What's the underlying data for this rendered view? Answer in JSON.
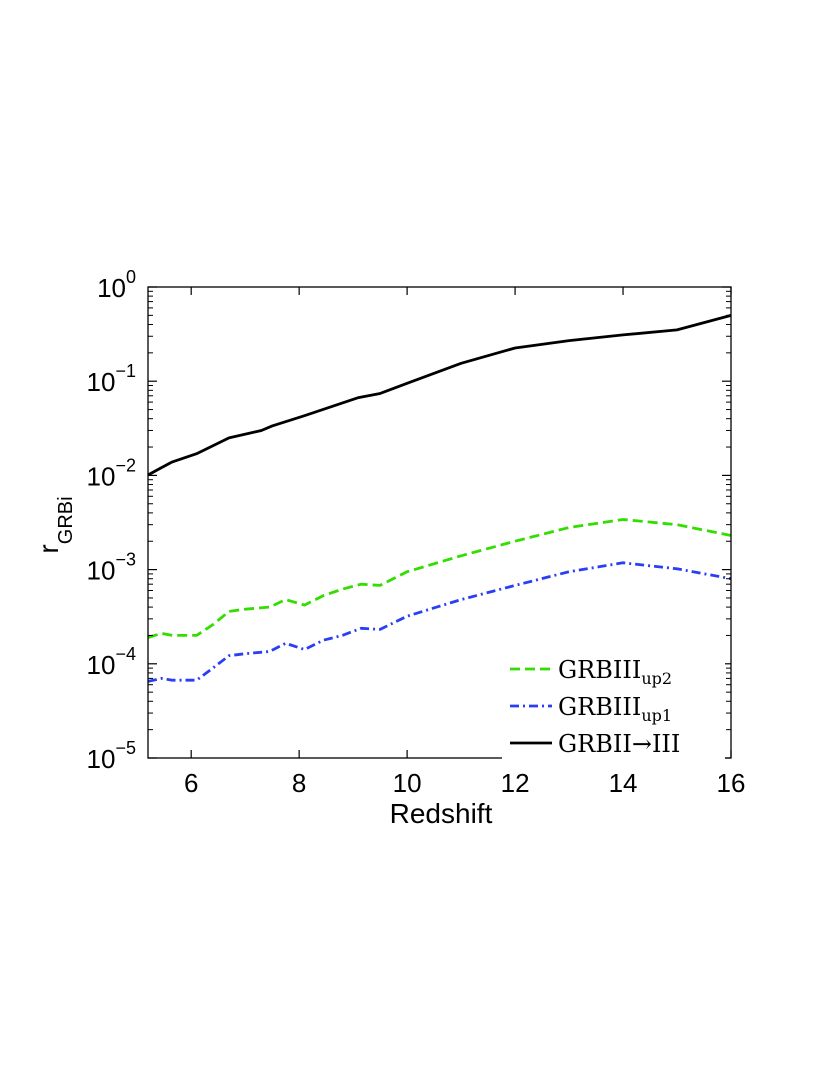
{
  "chart_data": {
    "type": "line",
    "xlabel": "Redshift",
    "ylabel": "r",
    "ylabel_sub": "GRBi",
    "xlim": [
      5.2,
      16
    ],
    "ylim": [
      1e-05,
      1
    ],
    "y_scale": "log",
    "grid": false,
    "legend_position": "bottom-right",
    "x_ticks": [
      6,
      8,
      10,
      12,
      14,
      16
    ],
    "y_ticks": [
      {
        "value": 1e-05,
        "base": "10",
        "exp": "−5"
      },
      {
        "value": 0.0001,
        "base": "10",
        "exp": "−4"
      },
      {
        "value": 0.001,
        "base": "10",
        "exp": "−3"
      },
      {
        "value": 0.01,
        "base": "10",
        "exp": "−2"
      },
      {
        "value": 0.1,
        "base": "10",
        "exp": "−1"
      },
      {
        "value": 1,
        "base": "10",
        "exp": "0"
      }
    ],
    "series": [
      {
        "name": "GRBIII",
        "name_sub": "up2",
        "color": "#33dd00",
        "dash": "dashed",
        "x": [
          5.2,
          5.45,
          5.65,
          6.1,
          6.4,
          6.7,
          7.0,
          7.45,
          7.75,
          8.1,
          8.45,
          8.8,
          9.15,
          9.5,
          10.0,
          11.0,
          12.0,
          13.0,
          14.0,
          15.0,
          16.0
        ],
        "y": [
          0.00019,
          0.00021,
          0.0002,
          0.0002,
          0.00026,
          0.00036,
          0.00038,
          0.0004,
          0.00048,
          0.00042,
          0.00053,
          0.00062,
          0.0007,
          0.00068,
          0.00095,
          0.0014,
          0.002,
          0.0028,
          0.0034,
          0.003,
          0.0023
        ]
      },
      {
        "name": "GRBIII",
        "name_sub": "up1",
        "color": "#2a3ff5",
        "dash": "dashdot",
        "x": [
          5.2,
          5.45,
          5.65,
          6.1,
          6.4,
          6.7,
          7.0,
          7.45,
          7.75,
          8.1,
          8.45,
          8.8,
          9.15,
          9.5,
          10.0,
          11.0,
          12.0,
          13.0,
          14.0,
          15.0,
          16.0
        ],
        "y": [
          6.5e-05,
          7e-05,
          6.7e-05,
          6.7e-05,
          9e-05,
          0.000122,
          0.000128,
          0.000135,
          0.000165,
          0.000142,
          0.000178,
          0.0002,
          0.000238,
          0.000232,
          0.00032,
          0.00048,
          0.00068,
          0.00095,
          0.00118,
          0.00102,
          0.0008
        ]
      },
      {
        "name": "GRBII→III",
        "name_sub": "",
        "color": "#000000",
        "dash": "solid",
        "x": [
          5.2,
          5.45,
          5.65,
          6.1,
          6.7,
          7.3,
          7.5,
          8.1,
          9.1,
          9.5,
          10.0,
          11.0,
          12.0,
          13.0,
          14.0,
          15.0,
          16.0
        ],
        "y": [
          0.0101,
          0.0121,
          0.0139,
          0.017,
          0.025,
          0.03,
          0.0335,
          0.043,
          0.067,
          0.074,
          0.095,
          0.155,
          0.225,
          0.27,
          0.31,
          0.35,
          0.5
        ]
      }
    ]
  }
}
